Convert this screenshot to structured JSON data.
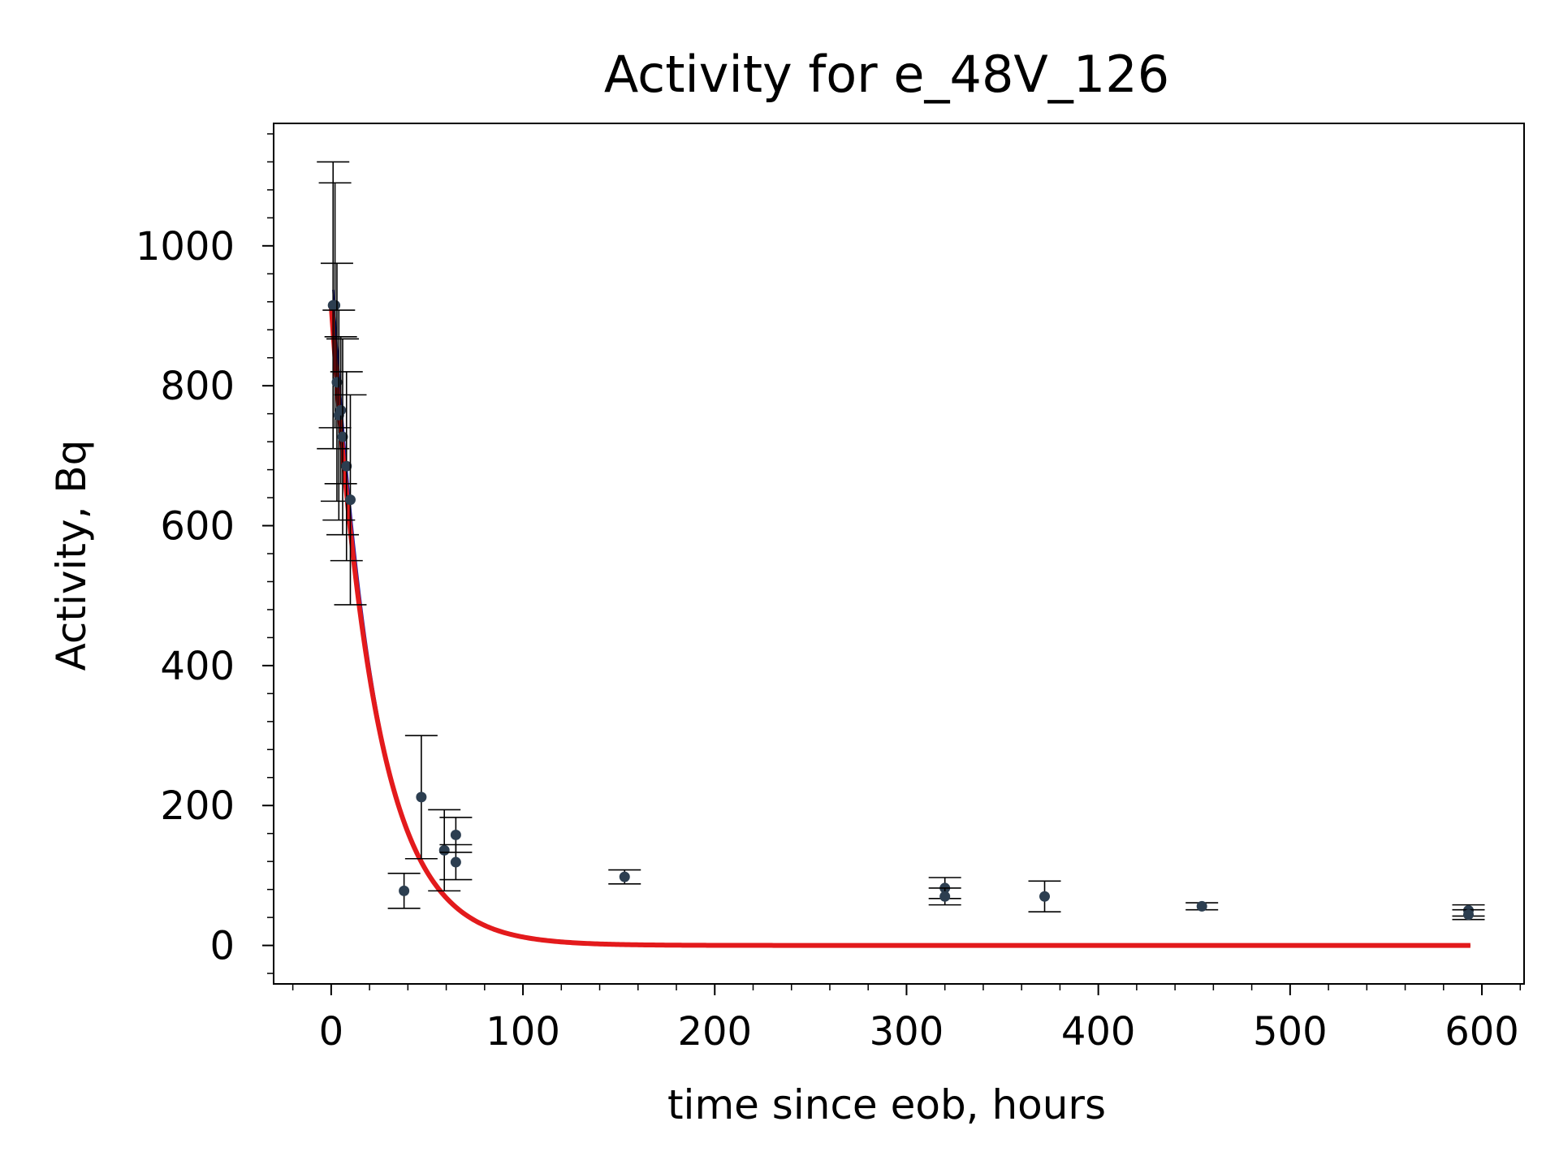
{
  "chart_data": {
    "type": "scatter",
    "title": "Activity for e_48V_126",
    "xlabel": "time since eob, hours",
    "ylabel": "Activity, Bq",
    "xlim": [
      -30,
      622
    ],
    "ylim": [
      -55,
      1175
    ],
    "xticks": [
      0,
      100,
      200,
      300,
      400,
      500,
      600
    ],
    "yticks": [
      0,
      200,
      400,
      600,
      800,
      1000
    ],
    "xtick_labels": [
      "0",
      "100",
      "200",
      "300",
      "400",
      "500",
      "600"
    ],
    "ytick_labels": [
      "0",
      "200",
      "400",
      "600",
      "800",
      "1000"
    ],
    "grid": false,
    "legend": "none",
    "colors": {
      "points": "#2c3e50",
      "errorbars": "#000000",
      "fit_primary": "#e31a1c",
      "fit_upper": "#1f1fa8",
      "fit_lower": "#2e8b2e"
    },
    "points": [
      {
        "x": 1,
        "y": 915,
        "err": 205
      },
      {
        "x": 2,
        "y": 915,
        "err": 175
      },
      {
        "x": 3,
        "y": 805,
        "err": 170
      },
      {
        "x": 4,
        "y": 758,
        "err": 150
      },
      {
        "x": 5,
        "y": 765,
        "err": 105
      },
      {
        "x": 6,
        "y": 727,
        "err": 140
      },
      {
        "x": 8,
        "y": 685,
        "err": 135
      },
      {
        "x": 10,
        "y": 637,
        "err": 150
      },
      {
        "x": 38,
        "y": 78,
        "err": 25
      },
      {
        "x": 47,
        "y": 212,
        "err": 88
      },
      {
        "x": 59,
        "y": 136,
        "err": 58
      },
      {
        "x": 65,
        "y": 158,
        "err": 25
      },
      {
        "x": 65,
        "y": 119,
        "err": 25
      },
      {
        "x": 153,
        "y": 98,
        "err": 10
      },
      {
        "x": 320,
        "y": 82,
        "err": 15
      },
      {
        "x": 320,
        "y": 70,
        "err": 12
      },
      {
        "x": 372,
        "y": 70,
        "err": 22
      },
      {
        "x": 454,
        "y": 56,
        "err": 5
      },
      {
        "x": 593,
        "y": 50,
        "err": 8
      },
      {
        "x": 593,
        "y": 44,
        "err": 7
      }
    ],
    "fit": {
      "x_start": 0,
      "x_end": 594,
      "series": [
        {
          "A0": 980,
          "half_life_h": 15.5,
          "color": "fit_upper",
          "x_start": 1
        },
        {
          "A0": 912,
          "half_life_h": 16.3,
          "color": "fit_lower",
          "x_start": 0
        },
        {
          "A0": 915,
          "half_life_h": 16.0,
          "color": "fit_primary",
          "x_start": 0
        }
      ]
    }
  }
}
